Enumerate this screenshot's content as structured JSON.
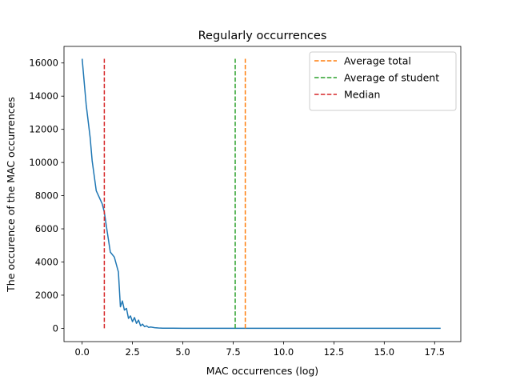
{
  "chart_data": {
    "type": "line",
    "title": "Regularly occurrences",
    "xlabel": "MAC occurrences (log)",
    "ylabel": "The occurence of the MAC occurrences",
    "xlim": [
      -0.9,
      18.8
    ],
    "ylim": [
      -800,
      17000
    ],
    "xticks": [
      0.0,
      2.5,
      5.0,
      7.5,
      10.0,
      12.5,
      15.0,
      17.5
    ],
    "xtick_labels": [
      "0.0",
      "2.5",
      "5.0",
      "7.5",
      "10.0",
      "12.5",
      "15.0",
      "17.5"
    ],
    "yticks": [
      0,
      2000,
      4000,
      6000,
      8000,
      10000,
      12000,
      14000,
      16000
    ],
    "ytick_labels": [
      "0",
      "2000",
      "4000",
      "6000",
      "8000",
      "10000",
      "12000",
      "14000",
      "16000"
    ],
    "grid": false,
    "legend_position": "upper right",
    "series": [
      {
        "style": "solid",
        "color": "#1f77b4",
        "x": [
          0.0,
          0.2,
          0.4,
          0.5,
          0.7,
          1.0,
          1.1,
          1.25,
          1.4,
          1.6,
          1.8,
          1.9,
          2.0,
          2.1,
          2.2,
          2.3,
          2.4,
          2.5,
          2.6,
          2.7,
          2.8,
          2.9,
          3.0,
          3.1,
          3.2,
          3.3,
          3.4,
          3.6,
          3.8,
          4.0,
          4.5,
          5.0,
          6.0,
          8.0,
          10.0,
          12.0,
          14.0,
          16.0,
          17.8
        ],
        "y": [
          16250,
          13500,
          11500,
          10100,
          8300,
          7500,
          7000,
          5800,
          4600,
          4300,
          3400,
          1300,
          1650,
          1100,
          1200,
          600,
          750,
          400,
          650,
          300,
          500,
          150,
          250,
          100,
          150,
          60,
          80,
          40,
          20,
          10,
          5,
          2,
          1,
          0,
          0,
          0,
          0,
          0,
          0
        ]
      },
      {
        "name": "Average total",
        "style": "dashed",
        "color": "#ff7f0e",
        "x": [
          8.1,
          8.1
        ],
        "y": [
          0,
          16250
        ]
      },
      {
        "name": "Average of student",
        "style": "dashed",
        "color": "#2ca02c",
        "x": [
          7.6,
          7.6
        ],
        "y": [
          0,
          16250
        ]
      },
      {
        "name": "Median",
        "style": "dashed",
        "color": "#d62728",
        "x": [
          1.1,
          1.1
        ],
        "y": [
          0,
          16250
        ]
      }
    ]
  }
}
